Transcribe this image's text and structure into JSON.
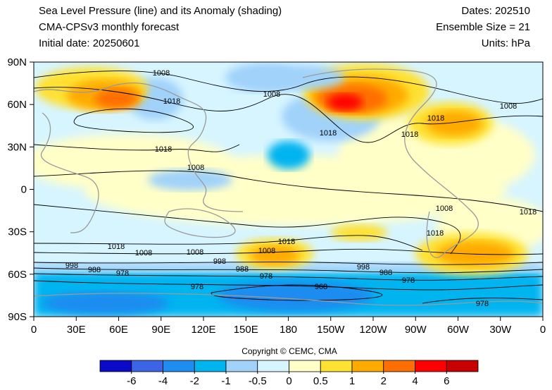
{
  "header": {
    "left": [
      "Sea Level Pressure (line) and its Anomaly (shading)",
      "CMA-CPSv3 monthly forecast",
      "Initial date: 20250601"
    ],
    "right": [
      "Dates: 202510",
      "Ensemble Size = 21",
      "Units: hPa"
    ]
  },
  "map": {
    "x_ticks": [
      "0",
      "30E",
      "60E",
      "90E",
      "120E",
      "150E",
      "180",
      "150W",
      "120W",
      "90W",
      "60W",
      "30W",
      "0"
    ],
    "y_ticks": [
      "90N",
      "60N",
      "30N",
      "0",
      "30S",
      "60S",
      "90S"
    ],
    "contour_labels": [
      1008,
      1018,
      1008,
      1018,
      1018,
      1008,
      1018,
      1018,
      1008,
      1008,
      1018,
      1018,
      1018,
      1018,
      1008,
      1008,
      1008,
      998,
      988,
      978,
      998,
      988,
      978,
      998,
      988,
      978,
      978,
      968,
      978
    ]
  },
  "copyright": "Copyright © CEMC, CMA",
  "colorbar": {
    "levels": [
      -6,
      -4,
      -2,
      -1,
      -0.5,
      0,
      0.5,
      1,
      2,
      4,
      6
    ],
    "colors": [
      "#0a0ac8",
      "#3c64e6",
      "#1e8cf0",
      "#00b4f0",
      "#a0d2fa",
      "#d7f5ff",
      "#ffffc8",
      "#ffe132",
      "#ffaa00",
      "#ff6e00",
      "#ff0000",
      "#c80000"
    ]
  }
}
